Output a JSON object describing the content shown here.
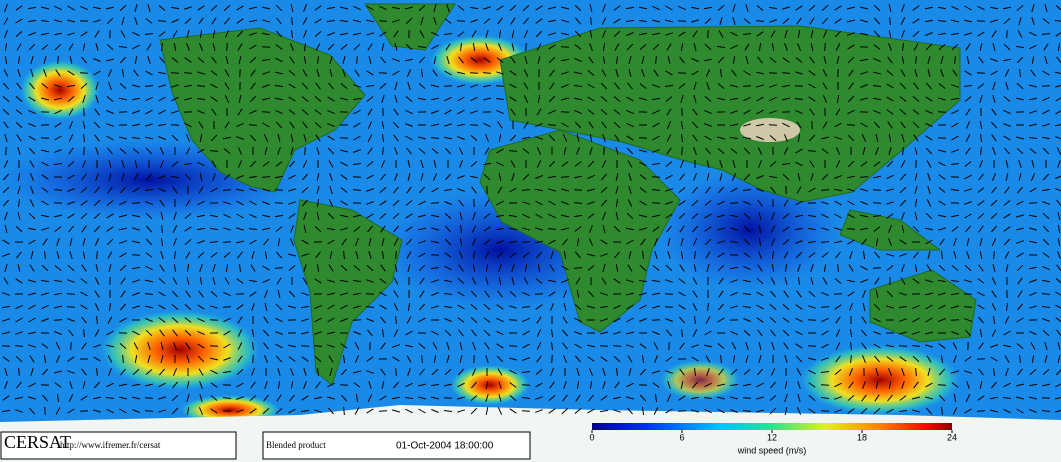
{
  "header": {
    "logo": "CERSAT",
    "url": "http://www.ifremer.fr/cersat"
  },
  "product": {
    "name": "Blended product",
    "datetime": "01-Oct-2004 18:00:00"
  },
  "colorbar": {
    "lim": [
      0,
      24
    ],
    "ticks": [
      0,
      6,
      12,
      18,
      24
    ],
    "label": "wind speed (m/s)"
  }
}
